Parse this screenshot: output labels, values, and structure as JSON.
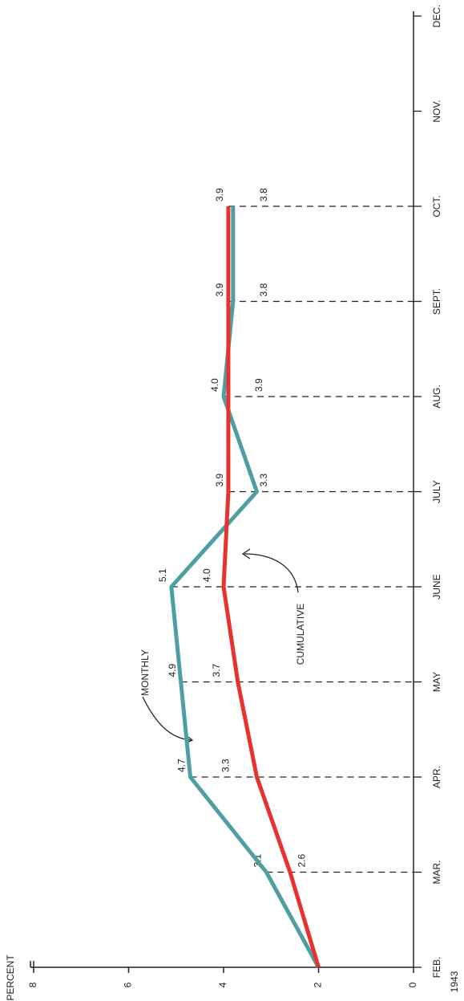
{
  "chart_data": {
    "type": "line",
    "y_label": "PERCENT",
    "year": "1943",
    "categories": [
      "FEB.",
      "MAR.",
      "APR.",
      "MAY",
      "JUNE",
      "JULY",
      "AUG.",
      "SEPT.",
      "OCT.",
      "NOV.",
      "DEC."
    ],
    "series": [
      {
        "name": "MONTHLY",
        "color": "#4f9ea3",
        "values": [
          2.0,
          3.1,
          4.7,
          4.9,
          5.1,
          3.3,
          4.0,
          3.8,
          3.8,
          null,
          null
        ],
        "value_labels": [
          null,
          "3.1",
          "4.7",
          "4.9",
          "5.1",
          "3.3",
          "4.0",
          "3.8",
          "3.8",
          null,
          null
        ]
      },
      {
        "name": "CUMULATIVE",
        "color": "#e8322e",
        "values": [
          2.0,
          2.6,
          3.3,
          3.7,
          4.0,
          3.9,
          3.9,
          3.9,
          3.9,
          null,
          null
        ],
        "value_labels": [
          null,
          "2.6",
          "3.3",
          "3.7",
          "4.0",
          "3.9",
          "3.9",
          "3.9",
          "3.9",
          null,
          null
        ]
      }
    ],
    "ylim": [
      0,
      8
    ],
    "yticks": [
      0,
      2,
      4,
      6,
      8
    ],
    "grid": false
  }
}
